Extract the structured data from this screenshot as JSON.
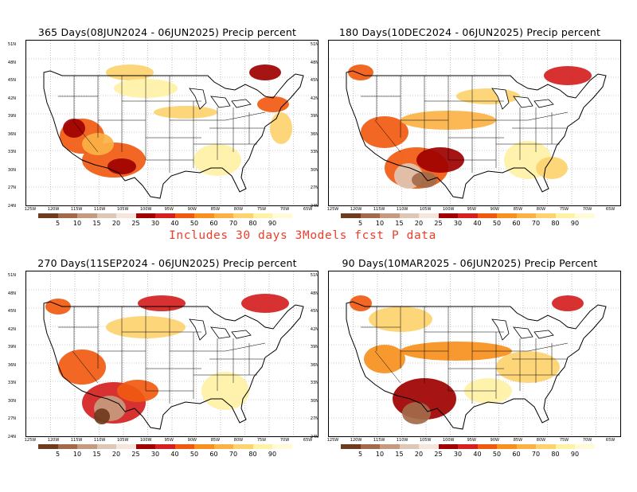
{
  "note": "Includes 30 days 3Models fcst P data",
  "panels": [
    {
      "title": "365 Days(08JUN2024 - 06JUN2025) Precip percent",
      "variant": 0
    },
    {
      "title": "180 Days(10DEC2024 - 06JUN2025) Precip percent",
      "variant": 1
    },
    {
      "title": "270 Days(11SEP2024 - 06JUN2025) Precip percent",
      "variant": 2
    },
    {
      "title": "90 Days(10MAR2025 - 06JUN2025) Precip Percent",
      "variant": 3
    }
  ],
  "lat_labels": [
    "51N",
    "48N",
    "45N",
    "42N",
    "39N",
    "36N",
    "33N",
    "30N",
    "27N",
    "24N"
  ],
  "lon_labels": [
    "125W",
    "120W",
    "115W",
    "110W",
    "105W",
    "100W",
    "95W",
    "90W",
    "85W",
    "80W",
    "75W",
    "70W",
    "65W"
  ],
  "legend": {
    "ticks": [
      "5",
      "10",
      "15",
      "20",
      "25",
      "30",
      "40",
      "50",
      "60",
      "70",
      "80",
      "90"
    ],
    "colors": [
      "#6e3b1e",
      "#a36a4a",
      "#c69a7e",
      "#e0c6b4",
      "#f5e6dc",
      "#a00000",
      "#d42020",
      "#f05a10",
      "#f7901e",
      "#fbb245",
      "#fdd36f",
      "#fff1a5",
      "#fffbd6"
    ]
  }
}
